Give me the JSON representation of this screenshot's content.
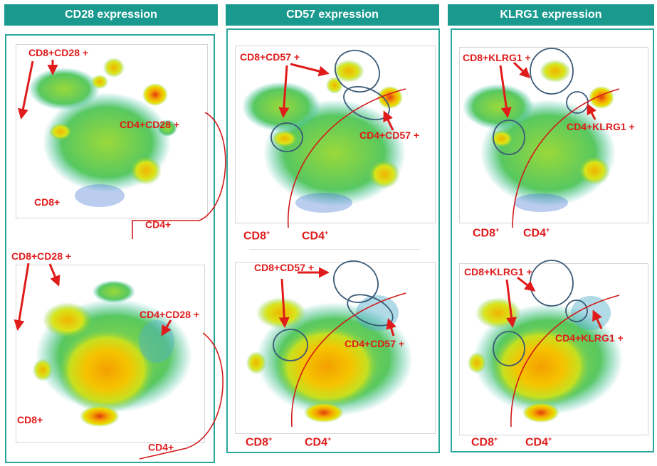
{
  "panels": [
    {
      "title": "CD28 expression",
      "rows": [
        {
          "pos_label": "CD8+CD28 +",
          "cd4_label": "CD4+CD28 +",
          "cd8_label": "CD8+",
          "cd4_base": "CD4+",
          "cd4_sup": ""
        },
        {
          "pos_label": "CD8+CD28 +",
          "cd4_label": "CD4+CD28 +",
          "cd8_label": "CD8+",
          "cd4_base": "CD4+",
          "cd4_sup": ""
        }
      ]
    },
    {
      "title": "CD57 expression",
      "rows": [
        {
          "pos_label": "CD8+CD57 +",
          "cd4_label": "CD4+CD57 +",
          "cd8_label": "CD8",
          "cd8_sup": "+",
          "cd4_base": "CD4",
          "cd4_sup": "+"
        },
        {
          "pos_label": "CD8+CD57 +",
          "cd4_label": "CD4+CD57 +",
          "cd8_label": "CD8",
          "cd8_sup": "+",
          "cd4_base": "CD4",
          "cd4_sup": "+"
        }
      ]
    },
    {
      "title": "KLRG1 expression",
      "rows": [
        {
          "pos_label": "CD8+KLRG1 +",
          "cd4_label": "CD4+KLRG1 +",
          "cd8_label": "CD8",
          "cd8_sup": "+",
          "cd4_base": "CD4",
          "cd4_sup": "+"
        },
        {
          "pos_label": "CD8+KLRG1 +",
          "cd4_label": "CD4+KLRG1 +",
          "cd8_label": "CD8",
          "cd8_sup": "+",
          "cd4_base": "CD4",
          "cd4_sup": "+"
        }
      ]
    }
  ],
  "colors": {
    "header_bg": "#1a9a8f",
    "panel_border": "#2aa79b",
    "annotation": "#e01b1b",
    "gate_ellipse": "#3b5a78"
  }
}
